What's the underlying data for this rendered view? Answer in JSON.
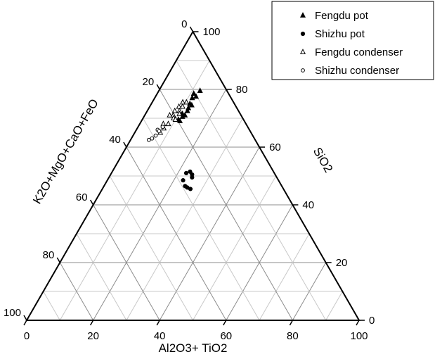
{
  "chart_data": {
    "type": "scatter",
    "subtype": "ternary",
    "axes": {
      "bottom": {
        "label": "Al2O3+ TiO2",
        "ticks": [
          "0",
          "20",
          "40",
          "60",
          "80",
          "100"
        ],
        "range": [
          0,
          100
        ]
      },
      "right": {
        "label": "SiO2",
        "ticks": [
          "0",
          "20",
          "40",
          "60",
          "80",
          "100"
        ],
        "range": [
          0,
          100
        ]
      },
      "left": {
        "label": "K2O+MgO+CaO+FeO",
        "ticks": [
          "0",
          "20",
          "40",
          "60",
          "80",
          "100"
        ],
        "range": [
          0,
          100
        ]
      }
    },
    "grid": true,
    "grid_step": 10,
    "legend_position": "top-right",
    "series": [
      {
        "name": "Fengdu pot",
        "marker": "filled-triangle",
        "color": "#000000",
        "points": [
          {
            "al": 11.0,
            "si": 78.5
          },
          {
            "al": 12.4,
            "si": 79.5
          },
          {
            "al": 11.3,
            "si": 77.0
          },
          {
            "al": 12.2,
            "si": 77.5
          },
          {
            "al": 11.6,
            "si": 75.0
          },
          {
            "al": 11.9,
            "si": 73.5
          },
          {
            "al": 12.4,
            "si": 74.5
          },
          {
            "al": 12.1,
            "si": 72.5
          },
          {
            "al": 11.1,
            "si": 71.5
          },
          {
            "al": 11.6,
            "si": 70.5
          },
          {
            "al": 12.1,
            "si": 71.0
          },
          {
            "al": 10.9,
            "si": 69.5
          },
          {
            "al": 11.6,
            "si": 69.0
          }
        ]
      },
      {
        "name": "Shizhu pot",
        "marker": "filled-circle",
        "color": "#000000",
        "points": [
          {
            "al": 22.5,
            "si": 51.0
          },
          {
            "al": 23.4,
            "si": 51.5
          },
          {
            "al": 24.5,
            "si": 50.5
          },
          {
            "al": 25.0,
            "si": 49.5
          },
          {
            "al": 22.8,
            "si": 48.5
          },
          {
            "al": 24.4,
            "si": 46.5
          },
          {
            "al": 25.3,
            "si": 46.0
          },
          {
            "al": 26.5,
            "si": 45.5
          }
        ]
      },
      {
        "name": "Fengdu condenser",
        "marker": "open-triangle",
        "color": "#000000",
        "points": [
          {
            "al": 9.2,
            "si": 75.5
          },
          {
            "al": 10.3,
            "si": 75.5
          },
          {
            "al": 8.8,
            "si": 74.0
          },
          {
            "al": 9.9,
            "si": 74.0
          },
          {
            "al": 8.3,
            "si": 72.5
          },
          {
            "al": 9.7,
            "si": 72.5
          },
          {
            "al": 10.2,
            "si": 71.5
          },
          {
            "al": 7.5,
            "si": 71.0
          },
          {
            "al": 8.6,
            "si": 71.0
          },
          {
            "al": 9.2,
            "si": 70.0
          },
          {
            "al": 10.0,
            "si": 69.5
          },
          {
            "al": 7.1,
            "si": 68.0
          },
          {
            "al": 8.6,
            "si": 68.0
          },
          {
            "al": 8.0,
            "si": 66.5
          },
          {
            "al": 7.7,
            "si": 65.0
          }
        ]
      },
      {
        "name": "Shizhu condenser",
        "marker": "open-circle",
        "color": "#000000",
        "points": [
          {
            "al": 7.4,
            "si": 67.0
          },
          {
            "al": 6.4,
            "si": 66.0
          },
          {
            "al": 7.1,
            "si": 65.5
          },
          {
            "al": 6.8,
            "si": 64.0
          },
          {
            "al": 6.2,
            "si": 63.0
          },
          {
            "al": 5.5,
            "si": 62.5
          }
        ]
      }
    ]
  }
}
